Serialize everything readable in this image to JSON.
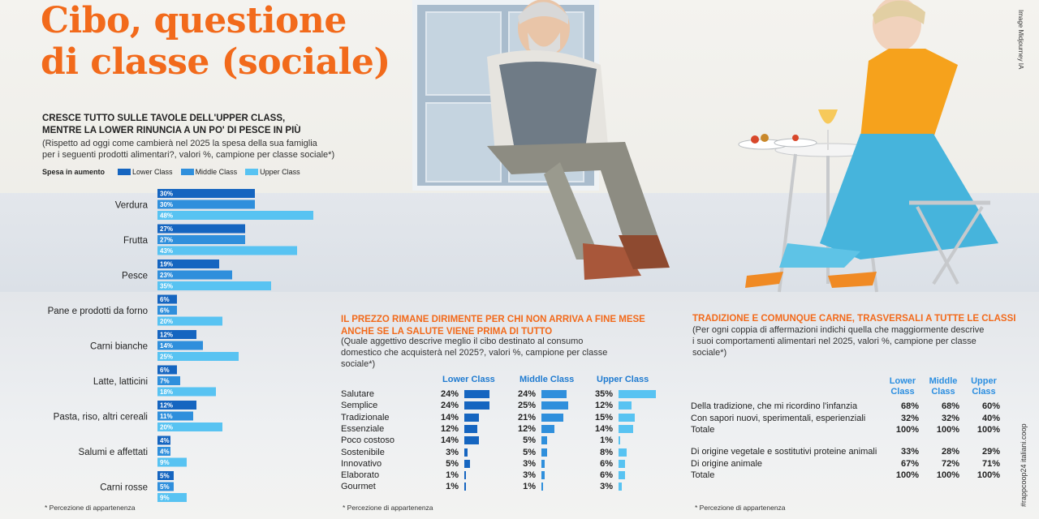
{
  "title_line1": "Cibo, questione",
  "title_line2": "di classe (sociale)",
  "image_credit": "Image Midjourney IA",
  "side_tag": "#rappcoop24 italiani.coop",
  "colors": {
    "orange": "#f26a1b",
    "lower": "#1565c0",
    "middle": "#2f8fdc",
    "upper": "#58c3f2"
  },
  "chart1": {
    "heading1": "CRESCE TUTTO SULLE TAVOLE DELL'UPPER CLASS,",
    "heading2": "MENTRE LA LOWER RINUNCIA A UN PO' DI PESCE IN PIÙ",
    "note1": "(Rispetto ad oggi come cambierà nel 2025 la spesa della sua famiglia",
    "note2": "per i seguenti  prodotti alimentari?, valori %, campione per classe sociale*)",
    "legend_title": "Spesa in aumento",
    "footnote": "* Percezione di appartenenza"
  },
  "chart_data": [
    {
      "type": "bar",
      "title": "CRESCE TUTTO SULLE TAVOLE DELL'UPPER CLASS, MENTRE LA LOWER RINUNCIA A UN PO' DI PESCE IN PIÙ",
      "categories": [
        "Verdura",
        "Frutta",
        "Pesce",
        "Pane e prodotti da forno",
        "Carni bianche",
        "Latte, latticini",
        "Pasta, riso, altri cereali",
        "Salumi e affettati",
        "Carni rosse"
      ],
      "series": [
        {
          "name": "Lower Class",
          "values": [
            30,
            27,
            19,
            6,
            12,
            6,
            12,
            4,
            5
          ]
        },
        {
          "name": "Middle Class",
          "values": [
            30,
            27,
            23,
            6,
            14,
            7,
            11,
            4,
            5
          ]
        },
        {
          "name": "Upper Class",
          "values": [
            48,
            43,
            35,
            20,
            25,
            18,
            20,
            9,
            9
          ]
        }
      ],
      "unit": "%"
    },
    {
      "type": "table",
      "title": "IL PREZZO RIMANE DIRIMENTE PER CHI NON ARRIVA A FINE MESE ANCHE SE LA SALUTE VIENE PRIMA DI TUTTO",
      "columns": [
        "Lower Class",
        "Middle Class",
        "Upper Class"
      ],
      "rows": [
        "Salutare",
        "Semplice",
        "Tradizionale",
        "Essenziale",
        "Poco costoso",
        "Sostenibile",
        "Innovativo",
        "Elaborato",
        "Gourmet"
      ],
      "values": [
        [
          24,
          24,
          35
        ],
        [
          24,
          25,
          12
        ],
        [
          14,
          21,
          15
        ],
        [
          12,
          12,
          14
        ],
        [
          14,
          5,
          1
        ],
        [
          3,
          5,
          8
        ],
        [
          5,
          3,
          6
        ],
        [
          1,
          3,
          6
        ],
        [
          1,
          1,
          3
        ]
      ]
    },
    {
      "type": "table",
      "title": "TRADIZIONE E COMUNQUE CARNE, TRASVERSALI A TUTTE LE CLASSI",
      "columns": [
        "Lower Class",
        "Middle Class",
        "Upper Class"
      ],
      "rows": [
        "Della tradizione, che mi ricordino l'infanzia",
        "Con sapori nuovi, sperimentali, esperienziali",
        "Totale",
        "Di origine vegetale e sostitutivi proteine animali",
        "Di origine animale",
        "Totale"
      ],
      "values": [
        [
          "68%",
          "68%",
          "60%"
        ],
        [
          "32%",
          "32%",
          "40%"
        ],
        [
          "100%",
          "100%",
          "100%"
        ],
        [
          "33%",
          "28%",
          "29%"
        ],
        [
          "67%",
          "72%",
          "71%"
        ],
        [
          "100%",
          "100%",
          "100%"
        ]
      ]
    }
  ],
  "chart2": {
    "heading1": "IL PREZZO RIMANE DIRIMENTE PER CHI NON ARRIVA A FINE MESE",
    "heading2": "ANCHE SE LA SALUTE VIENE PRIMA DI TUTTO",
    "note1": "(Quale aggettivo descrive meglio il cibo destinato al consumo",
    "note2": "domestico che acquisterà nel 2025?, valori %, campione per classe",
    "note3": "sociale*)",
    "footnote": "* Percezione di appartenenza"
  },
  "chart3": {
    "heading": "TRADIZIONE E COMUNQUE CARNE, TRASVERSALI A TUTTE LE CLASSI",
    "note1": "(Per ogni coppia di affermazioni indichi quella che maggiormente descrive",
    "note2": "i suoi comportamenti alimentari nel 2025, valori %, campione per classe",
    "note3": "sociale*)",
    "col_heads": [
      [
        "Lower",
        "Class"
      ],
      [
        "Middle",
        "Class"
      ],
      [
        "Upper",
        "Class"
      ]
    ],
    "footnote": "* Percezione di appartenenza"
  }
}
